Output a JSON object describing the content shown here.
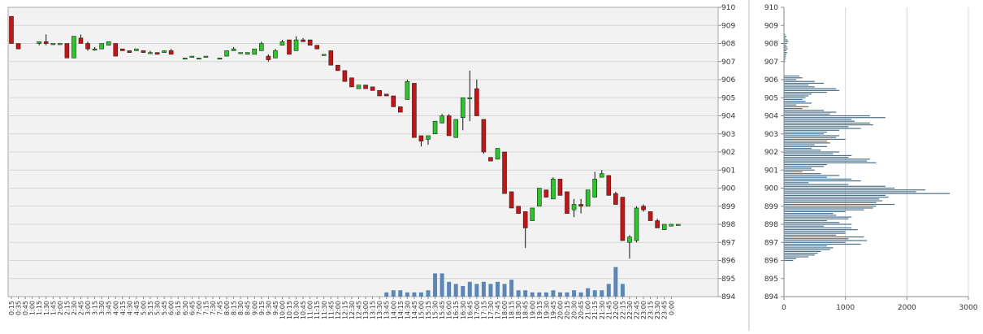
{
  "chart_data": [
    {
      "type": "candlestick",
      "title": "",
      "xlabel": "",
      "ylabel": "",
      "ylim": [
        894,
        910
      ],
      "y_ticks": [
        "910",
        "909",
        "908",
        "907",
        "906",
        "905",
        "904",
        "903",
        "902",
        "901",
        "900",
        "899",
        "898",
        "897",
        "896",
        "895",
        "894"
      ],
      "x_ticks": [
        "0:15",
        "0:35",
        "0:45",
        "1:00",
        "1:15",
        "1:30",
        "1:45",
        "2:00",
        "2:15",
        "2:30",
        "2:45",
        "3:00",
        "3:15",
        "3:30",
        "3:45",
        "4:00",
        "4:15",
        "4:30",
        "4:45",
        "5:00",
        "5:15",
        "5:30",
        "5:45",
        "6:00",
        "6:15",
        "6:30",
        "6:45",
        "7:00",
        "7:15",
        "7:30",
        "7:45",
        "8:00",
        "8:15",
        "8:30",
        "8:45",
        "9:00",
        "9:15",
        "9:30",
        "9:45",
        "10:00",
        "10:15",
        "10:30",
        "10:45",
        "11:00",
        "11:15",
        "11:30",
        "11:45",
        "12:00",
        "12:15",
        "12:30",
        "12:45",
        "13:00",
        "13:15",
        "13:30",
        "13:45",
        "14:00",
        "14:15",
        "14:30",
        "14:45",
        "15:00",
        "15:15",
        "15:30",
        "15:45",
        "16:00",
        "16:15",
        "16:30",
        "16:45",
        "17:00",
        "17:15",
        "17:30",
        "17:45",
        "18:00",
        "18:15",
        "18:30",
        "18:45",
        "19:00",
        "19:15",
        "19:30",
        "19:45",
        "20:00",
        "20:15",
        "20:30",
        "20:45",
        "21:00",
        "21:15",
        "21:30",
        "21:45",
        "22:00",
        "22:15",
        "22:30",
        "22:45",
        "23:00",
        "23:15",
        "23:30",
        "23:45",
        "0:00"
      ],
      "grid": true,
      "colors": {
        "up": "#22cc22",
        "down": "#cc1111",
        "volume": "#5b87b8",
        "background": "#f2f2f2"
      },
      "candles": [
        [
          909.5,
          909.5,
          908.0,
          908.0
        ],
        [
          908.0,
          908.0,
          907.7,
          907.7
        ],
        null,
        null,
        [
          908.0,
          908.1,
          907.9,
          908.1
        ],
        [
          908.1,
          908.5,
          907.9,
          908.0
        ],
        [
          908.0,
          908.0,
          908.0,
          908.0
        ],
        [
          908.0,
          908.0,
          908.0,
          908.0
        ],
        [
          908.0,
          908.0,
          907.2,
          907.2
        ],
        [
          907.2,
          908.4,
          907.2,
          908.4
        ],
        [
          908.3,
          908.5,
          908.0,
          908.0
        ],
        [
          908.0,
          908.1,
          907.6,
          907.7
        ],
        [
          907.7,
          907.8,
          907.6,
          907.7
        ],
        [
          907.7,
          908.0,
          907.7,
          908.0
        ],
        [
          907.9,
          908.1,
          907.9,
          908.1
        ],
        [
          908.0,
          908.0,
          907.3,
          907.3
        ],
        [
          907.7,
          907.7,
          907.6,
          907.6
        ],
        [
          907.6,
          907.6,
          907.5,
          907.5
        ],
        [
          907.6,
          907.7,
          907.6,
          907.7
        ],
        [
          907.6,
          907.6,
          907.5,
          907.5
        ],
        [
          907.5,
          907.6,
          907.5,
          907.5
        ],
        [
          907.5,
          907.5,
          907.4,
          907.4
        ],
        [
          907.5,
          907.6,
          907.5,
          907.6
        ],
        [
          907.6,
          907.7,
          907.4,
          907.4
        ],
        null,
        [
          907.2,
          907.2,
          907.2,
          907.2
        ],
        [
          907.3,
          907.3,
          907.3,
          907.3
        ],
        [
          907.2,
          907.2,
          907.2,
          907.2
        ],
        [
          907.3,
          907.3,
          907.3,
          907.3
        ],
        null,
        [
          907.2,
          907.2,
          907.2,
          907.2
        ],
        [
          907.3,
          907.6,
          907.3,
          907.6
        ],
        [
          907.6,
          907.8,
          907.6,
          907.7
        ],
        [
          907.5,
          907.5,
          907.5,
          907.5
        ],
        [
          907.4,
          907.5,
          907.4,
          907.5
        ],
        [
          907.4,
          907.7,
          907.4,
          907.7
        ],
        [
          907.6,
          908.1,
          907.6,
          908.0
        ],
        [
          907.3,
          907.4,
          907.0,
          907.1
        ],
        [
          907.2,
          907.7,
          907.2,
          907.6
        ],
        [
          907.9,
          908.2,
          907.9,
          908.1
        ],
        [
          908.2,
          908.2,
          907.4,
          907.4
        ],
        [
          907.6,
          908.4,
          907.6,
          908.2
        ],
        [
          908.2,
          908.3,
          908.1,
          908.1
        ],
        [
          908.2,
          908.2,
          907.9,
          907.9
        ],
        [
          907.9,
          907.9,
          907.7,
          907.7
        ],
        [
          907.4,
          907.4,
          907.4,
          907.4
        ],
        [
          907.6,
          907.6,
          906.8,
          906.8
        ],
        [
          906.8,
          906.8,
          906.5,
          906.5
        ],
        [
          906.5,
          906.5,
          905.9,
          905.9
        ],
        [
          906.1,
          906.1,
          905.6,
          905.6
        ],
        [
          905.5,
          905.7,
          905.5,
          905.7
        ],
        [
          905.7,
          905.7,
          905.5,
          905.5
        ],
        [
          905.6,
          905.6,
          905.4,
          905.4
        ],
        [
          905.4,
          905.4,
          905.1,
          905.1
        ],
        [
          905.2,
          905.2,
          905.1,
          905.1
        ],
        [
          905.1,
          905.1,
          904.5,
          904.5
        ],
        [
          904.5,
          904.5,
          904.2,
          904.2
        ],
        [
          904.9,
          906.0,
          904.9,
          905.9
        ],
        [
          905.8,
          905.8,
          902.8,
          902.8
        ],
        [
          902.9,
          902.9,
          902.3,
          902.6
        ],
        [
          902.7,
          902.9,
          902.4,
          902.9
        ],
        [
          903.0,
          903.7,
          903.0,
          903.7
        ],
        [
          903.6,
          904.1,
          903.6,
          904.0
        ],
        [
          904.0,
          904.1,
          902.9,
          902.9
        ],
        [
          902.8,
          903.8,
          902.9,
          903.8
        ],
        [
          903.9,
          905.0,
          903.2,
          905.0
        ],
        [
          905.0,
          906.5,
          903.7,
          905.0
        ],
        [
          905.5,
          906.0,
          904.0,
          904.0
        ],
        [
          903.8,
          903.8,
          901.9,
          902.0
        ],
        [
          901.7,
          901.7,
          901.5,
          901.5
        ],
        [
          901.6,
          902.2,
          901.6,
          902.2
        ],
        [
          902.0,
          902.0,
          899.7,
          899.7
        ],
        [
          899.8,
          899.8,
          898.9,
          898.9
        ],
        [
          899.0,
          899.0,
          898.6,
          898.6
        ],
        [
          898.7,
          898.7,
          896.7,
          897.8
        ],
        [
          898.2,
          898.9,
          898.2,
          898.9
        ],
        [
          899.0,
          900.0,
          899.0,
          900.0
        ],
        [
          899.9,
          899.9,
          899.5,
          899.5
        ],
        [
          899.4,
          900.6,
          899.4,
          900.5
        ],
        [
          900.5,
          900.5,
          899.6,
          899.6
        ],
        [
          899.8,
          899.8,
          898.6,
          898.6
        ],
        [
          898.8,
          899.4,
          898.4,
          899.1
        ],
        [
          899.1,
          899.4,
          898.6,
          899.0
        ],
        [
          899.0,
          899.9,
          899.0,
          899.9
        ],
        [
          899.5,
          900.9,
          899.5,
          900.5
        ],
        [
          900.6,
          901.0,
          900.6,
          900.8
        ],
        [
          900.7,
          900.7,
          899.6,
          899.6
        ],
        [
          899.7,
          899.8,
          899.1,
          899.1
        ],
        [
          899.5,
          899.5,
          897.1,
          897.1
        ],
        [
          897.0,
          897.4,
          896.1,
          897.3
        ],
        [
          897.1,
          899.0,
          897.0,
          898.9
        ],
        [
          899.0,
          899.1,
          898.7,
          898.8
        ],
        [
          898.7,
          898.7,
          898.2,
          898.2
        ],
        [
          898.2,
          898.3,
          897.8,
          897.8
        ],
        [
          897.7,
          898.0,
          897.7,
          898.0
        ],
        [
          897.9,
          898.0,
          897.9,
          898.0
        ],
        [
          898.0,
          898.0,
          898.0,
          898.0
        ]
      ],
      "volume_levels": [
        0,
        0,
        0,
        0,
        0,
        0,
        0,
        0,
        0,
        0,
        0,
        0,
        0,
        0,
        0,
        0,
        0,
        0,
        0,
        0,
        0,
        0,
        0,
        0,
        0,
        0,
        0,
        0,
        0,
        0,
        0,
        0,
        0,
        0,
        0,
        0,
        0,
        0,
        0,
        0,
        0,
        0,
        0,
        0,
        0,
        0,
        0,
        0,
        0,
        0,
        0,
        0,
        0,
        0,
        0.2,
        0.3,
        0.3,
        0.2,
        0.2,
        0.2,
        0.3,
        1.1,
        1.1,
        0.7,
        0.6,
        0.5,
        0.7,
        0.6,
        0.7,
        0.6,
        0.7,
        0.6,
        0.8,
        0.3,
        0.3,
        0.2,
        0.2,
        0.2,
        0.3,
        0.2,
        0.2,
        0.3,
        0.2,
        0.4,
        0.3,
        0.3,
        0.6,
        1.4,
        0.6,
        0,
        0,
        0,
        0,
        0,
        0,
        0
      ]
    },
    {
      "type": "horizontal_bar",
      "title": "",
      "ylim": [
        894,
        910
      ],
      "xlim": [
        0,
        3000
      ],
      "y_ticks": [
        "910",
        "909",
        "908",
        "907",
        "906",
        "905",
        "904",
        "903",
        "902",
        "901",
        "900",
        "899",
        "898",
        "897",
        "896",
        "895",
        "894"
      ],
      "x_ticks": [
        "0",
        "1000",
        "2000",
        "3000"
      ],
      "grid": true,
      "colors": {
        "bar": "#4a6f8a"
      },
      "profile": [
        [
          908.5,
          20
        ],
        [
          908.4,
          40
        ],
        [
          908.3,
          30
        ],
        [
          908.2,
          60
        ],
        [
          908.1,
          70
        ],
        [
          908.0,
          50
        ],
        [
          907.9,
          40
        ],
        [
          907.8,
          50
        ],
        [
          907.7,
          60
        ],
        [
          907.6,
          40
        ],
        [
          907.5,
          50
        ],
        [
          907.4,
          40
        ],
        [
          907.3,
          30
        ],
        [
          907.2,
          30
        ],
        [
          907.1,
          20
        ],
        [
          907.0,
          20
        ],
        [
          906.2,
          250
        ],
        [
          906.1,
          300
        ],
        [
          906.0,
          200
        ],
        [
          905.9,
          500
        ],
        [
          905.8,
          650
        ],
        [
          905.7,
          400
        ],
        [
          905.6,
          500
        ],
        [
          905.5,
          850
        ],
        [
          905.4,
          900
        ],
        [
          905.3,
          700
        ],
        [
          905.2,
          450
        ],
        [
          905.1,
          400
        ],
        [
          905.0,
          350
        ],
        [
          904.9,
          300
        ],
        [
          904.8,
          350
        ],
        [
          904.7,
          450
        ],
        [
          904.6,
          200
        ],
        [
          904.5,
          400
        ],
        [
          904.4,
          300
        ],
        [
          904.3,
          650
        ],
        [
          904.2,
          850
        ],
        [
          904.1,
          750
        ],
        [
          904.0,
          1400
        ],
        [
          903.9,
          1650
        ],
        [
          903.8,
          1100
        ],
        [
          903.7,
          1150
        ],
        [
          903.6,
          1400
        ],
        [
          903.5,
          1450
        ],
        [
          903.4,
          1050
        ],
        [
          903.3,
          1250
        ],
        [
          903.2,
          900
        ],
        [
          903.1,
          700
        ],
        [
          903.0,
          650
        ],
        [
          902.9,
          900
        ],
        [
          902.8,
          850
        ],
        [
          902.7,
          1000
        ],
        [
          902.6,
          700
        ],
        [
          902.5,
          750
        ],
        [
          902.4,
          500
        ],
        [
          902.3,
          700
        ],
        [
          902.2,
          450
        ],
        [
          902.1,
          600
        ],
        [
          902.0,
          900
        ],
        [
          901.9,
          800
        ],
        [
          901.8,
          1100
        ],
        [
          901.7,
          1050
        ],
        [
          901.6,
          1400
        ],
        [
          901.5,
          1350
        ],
        [
          901.4,
          1500
        ],
        [
          901.3,
          700
        ],
        [
          901.2,
          650
        ],
        [
          901.1,
          450
        ],
        [
          901.0,
          500
        ],
        [
          900.9,
          300
        ],
        [
          900.8,
          600
        ],
        [
          900.7,
          900
        ],
        [
          900.6,
          700
        ],
        [
          900.5,
          1100
        ],
        [
          900.4,
          1250
        ],
        [
          900.3,
          400
        ],
        [
          900.2,
          1050
        ],
        [
          900.1,
          1650
        ],
        [
          900.0,
          1800
        ],
        [
          899.9,
          2300
        ],
        [
          899.8,
          2150
        ],
        [
          899.7,
          2700
        ],
        [
          899.6,
          1650
        ],
        [
          899.5,
          1700
        ],
        [
          899.4,
          1550
        ],
        [
          899.3,
          1600
        ],
        [
          899.2,
          1500
        ],
        [
          899.1,
          1800
        ],
        [
          899.0,
          1500
        ],
        [
          898.9,
          1450
        ],
        [
          898.8,
          1300
        ],
        [
          898.7,
          1000
        ],
        [
          898.6,
          800
        ],
        [
          898.5,
          850
        ],
        [
          898.4,
          1100
        ],
        [
          898.3,
          1050
        ],
        [
          898.2,
          700
        ],
        [
          898.1,
          900
        ],
        [
          898.0,
          1100
        ],
        [
          897.9,
          650
        ],
        [
          897.8,
          1100
        ],
        [
          897.7,
          1200
        ],
        [
          897.6,
          1000
        ],
        [
          897.5,
          1000
        ],
        [
          897.4,
          850
        ],
        [
          897.3,
          1300
        ],
        [
          897.2,
          1050
        ],
        [
          897.1,
          1350
        ],
        [
          897.0,
          1000
        ],
        [
          896.9,
          1250
        ],
        [
          896.8,
          700
        ],
        [
          896.7,
          800
        ],
        [
          896.6,
          750
        ],
        [
          896.5,
          600
        ],
        [
          896.4,
          550
        ],
        [
          896.3,
          500
        ],
        [
          896.2,
          400
        ],
        [
          896.1,
          200
        ],
        [
          896.0,
          150
        ]
      ]
    }
  ]
}
